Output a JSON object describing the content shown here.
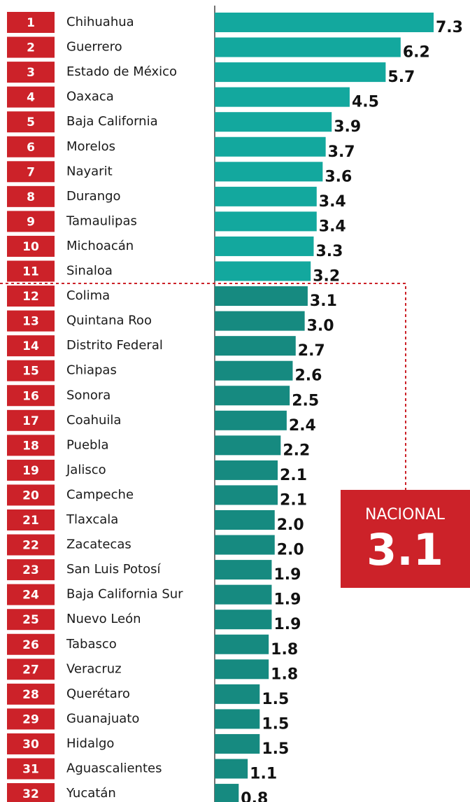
{
  "chart_data": {
    "type": "bar",
    "orientation": "horizontal",
    "ranks": [
      1,
      2,
      3,
      4,
      5,
      6,
      7,
      8,
      9,
      10,
      11,
      12,
      13,
      14,
      15,
      16,
      17,
      18,
      19,
      20,
      21,
      22,
      23,
      24,
      25,
      26,
      27,
      28,
      29,
      30,
      31,
      32
    ],
    "categories": [
      "Chihuahua",
      "Guerrero",
      "Estado de México",
      "Oaxaca",
      "Baja California",
      "Morelos",
      "Nayarit",
      "Durango",
      "Tamaulipas",
      "Michoacán",
      "Sinaloa",
      "Colima",
      "Quintana Roo",
      "Distrito Federal",
      "Chiapas",
      "Sonora",
      "Coahuila",
      "Puebla",
      "Jalisco",
      "Campeche",
      "Tlaxcala",
      "Zacatecas",
      "San Luis Potosí",
      "Baja California Sur",
      "Nuevo León",
      "Tabasco",
      "Veracruz",
      "Querétaro",
      "Guanajuato",
      "Hidalgo",
      "Aguascalientes",
      "Yucatán"
    ],
    "values": [
      7.3,
      6.2,
      5.7,
      4.5,
      3.9,
      3.7,
      3.6,
      3.4,
      3.4,
      3.3,
      3.2,
      3.1,
      3.0,
      2.7,
      2.6,
      2.5,
      2.4,
      2.2,
      2.1,
      2.1,
      2.0,
      2.0,
      1.9,
      1.9,
      1.9,
      1.8,
      1.8,
      1.5,
      1.5,
      1.5,
      1.1,
      0.8
    ],
    "value_labels": [
      "7.3",
      "6.2",
      "5.7",
      "4.5",
      "3.9",
      "3.7",
      "3.6",
      "3.4",
      "3.4",
      "3.3",
      "3.2",
      "3.1",
      "3.0",
      "2.7",
      "2.6",
      "2.5",
      "2.4",
      "2.2",
      "2.1",
      "2.1",
      "2.0",
      "2.0",
      "1.9",
      "1.9",
      "1.9",
      "1.8",
      "1.8",
      "1.5",
      "1.5",
      "1.5",
      "1.1",
      "0.8"
    ],
    "colors": [
      "#13a89e",
      "#13a89e",
      "#13a89e",
      "#13a89e",
      "#13a89e",
      "#13a89e",
      "#13a89e",
      "#13a89e",
      "#13a89e",
      "#13a89e",
      "#13a89e",
      "#168a80",
      "#168a80",
      "#168a80",
      "#168a80",
      "#168a80",
      "#168a80",
      "#168a80",
      "#168a80",
      "#168a80",
      "#168a80",
      "#168a80",
      "#168a80",
      "#168a80",
      "#168a80",
      "#168a80",
      "#168a80",
      "#168a80",
      "#168a80",
      "#168a80",
      "#168a80",
      "#168a80"
    ],
    "rank_color": "#cc2229",
    "xlim": [
      0,
      7.3
    ],
    "national": {
      "label": "NACIONAL",
      "value": 3.1
    }
  }
}
